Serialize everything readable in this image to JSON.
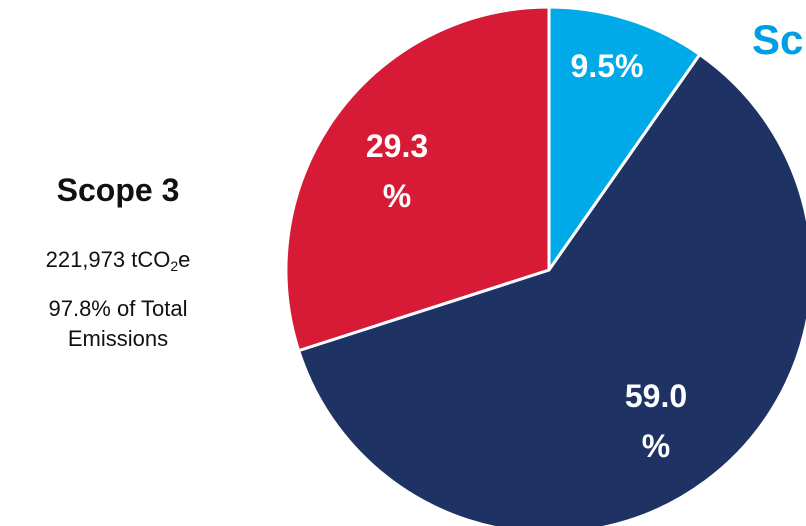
{
  "left_panel": {
    "title": "Scope 3",
    "total_value": "221,973 tCO",
    "total_unit_sub": "2",
    "total_unit_tail": "e",
    "share_line1": "97.8% of Total",
    "share_line2": "Emissions"
  },
  "corner_heading": "Sc",
  "chart_data": {
    "type": "pie",
    "title": "",
    "start_angle_deg": 0,
    "direction": "clockwise",
    "slices": [
      {
        "label_line1": "9.5%",
        "label_line2": "",
        "value": 9.5,
        "color": "#00A9E8"
      },
      {
        "label_line1": "59.0",
        "label_line2": "%",
        "value": 59.0,
        "color": "#1E3264"
      },
      {
        "label_line1": "29.3",
        "label_line2": "%",
        "value": 29.3,
        "color": "#D71A35"
      }
    ]
  }
}
